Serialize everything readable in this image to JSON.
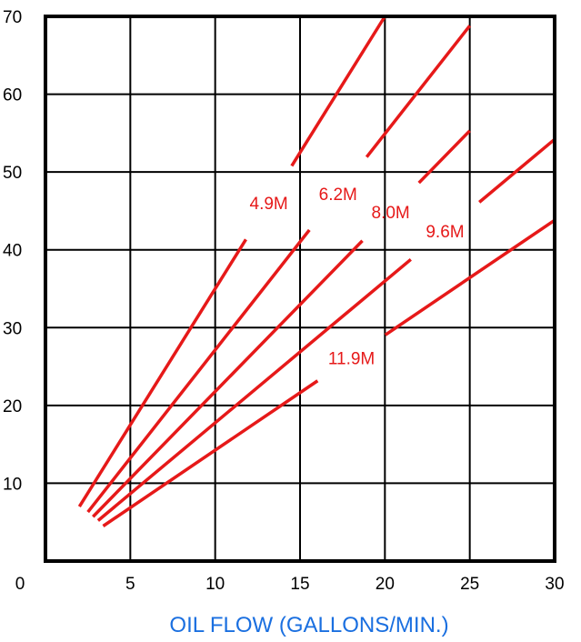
{
  "chart_data": {
    "type": "line",
    "title": "",
    "xlabel": "OIL FLOW (GALLONS/MIN.)",
    "ylabel": "",
    "xlim": [
      0,
      30
    ],
    "ylim": [
      0,
      70
    ],
    "x_ticks": [
      "0",
      "5",
      "10",
      "15",
      "20",
      "25",
      "30"
    ],
    "y_ticks": [
      "10",
      "20",
      "30",
      "40",
      "50",
      "60",
      "70"
    ],
    "grid": true,
    "series": [
      {
        "name": "4.9M",
        "x": [
          2.0,
          20.0
        ],
        "y": [
          7.0,
          70.0
        ]
      },
      {
        "name": "6.2M",
        "x": [
          2.5,
          25.0
        ],
        "y": [
          6.3,
          68.8
        ]
      },
      {
        "name": "8.0M",
        "x": [
          2.8,
          25.0
        ],
        "y": [
          5.7,
          55.3
        ]
      },
      {
        "name": "9.6M",
        "x": [
          3.1,
          30.0
        ],
        "y": [
          5.2,
          54.2
        ]
      },
      {
        "name": "11.9M",
        "x": [
          3.4,
          30.0
        ],
        "y": [
          4.5,
          43.8
        ]
      }
    ],
    "colors": {
      "line": "#e61919",
      "axis": "#000000",
      "xlabel": "#1a6fe0"
    }
  }
}
